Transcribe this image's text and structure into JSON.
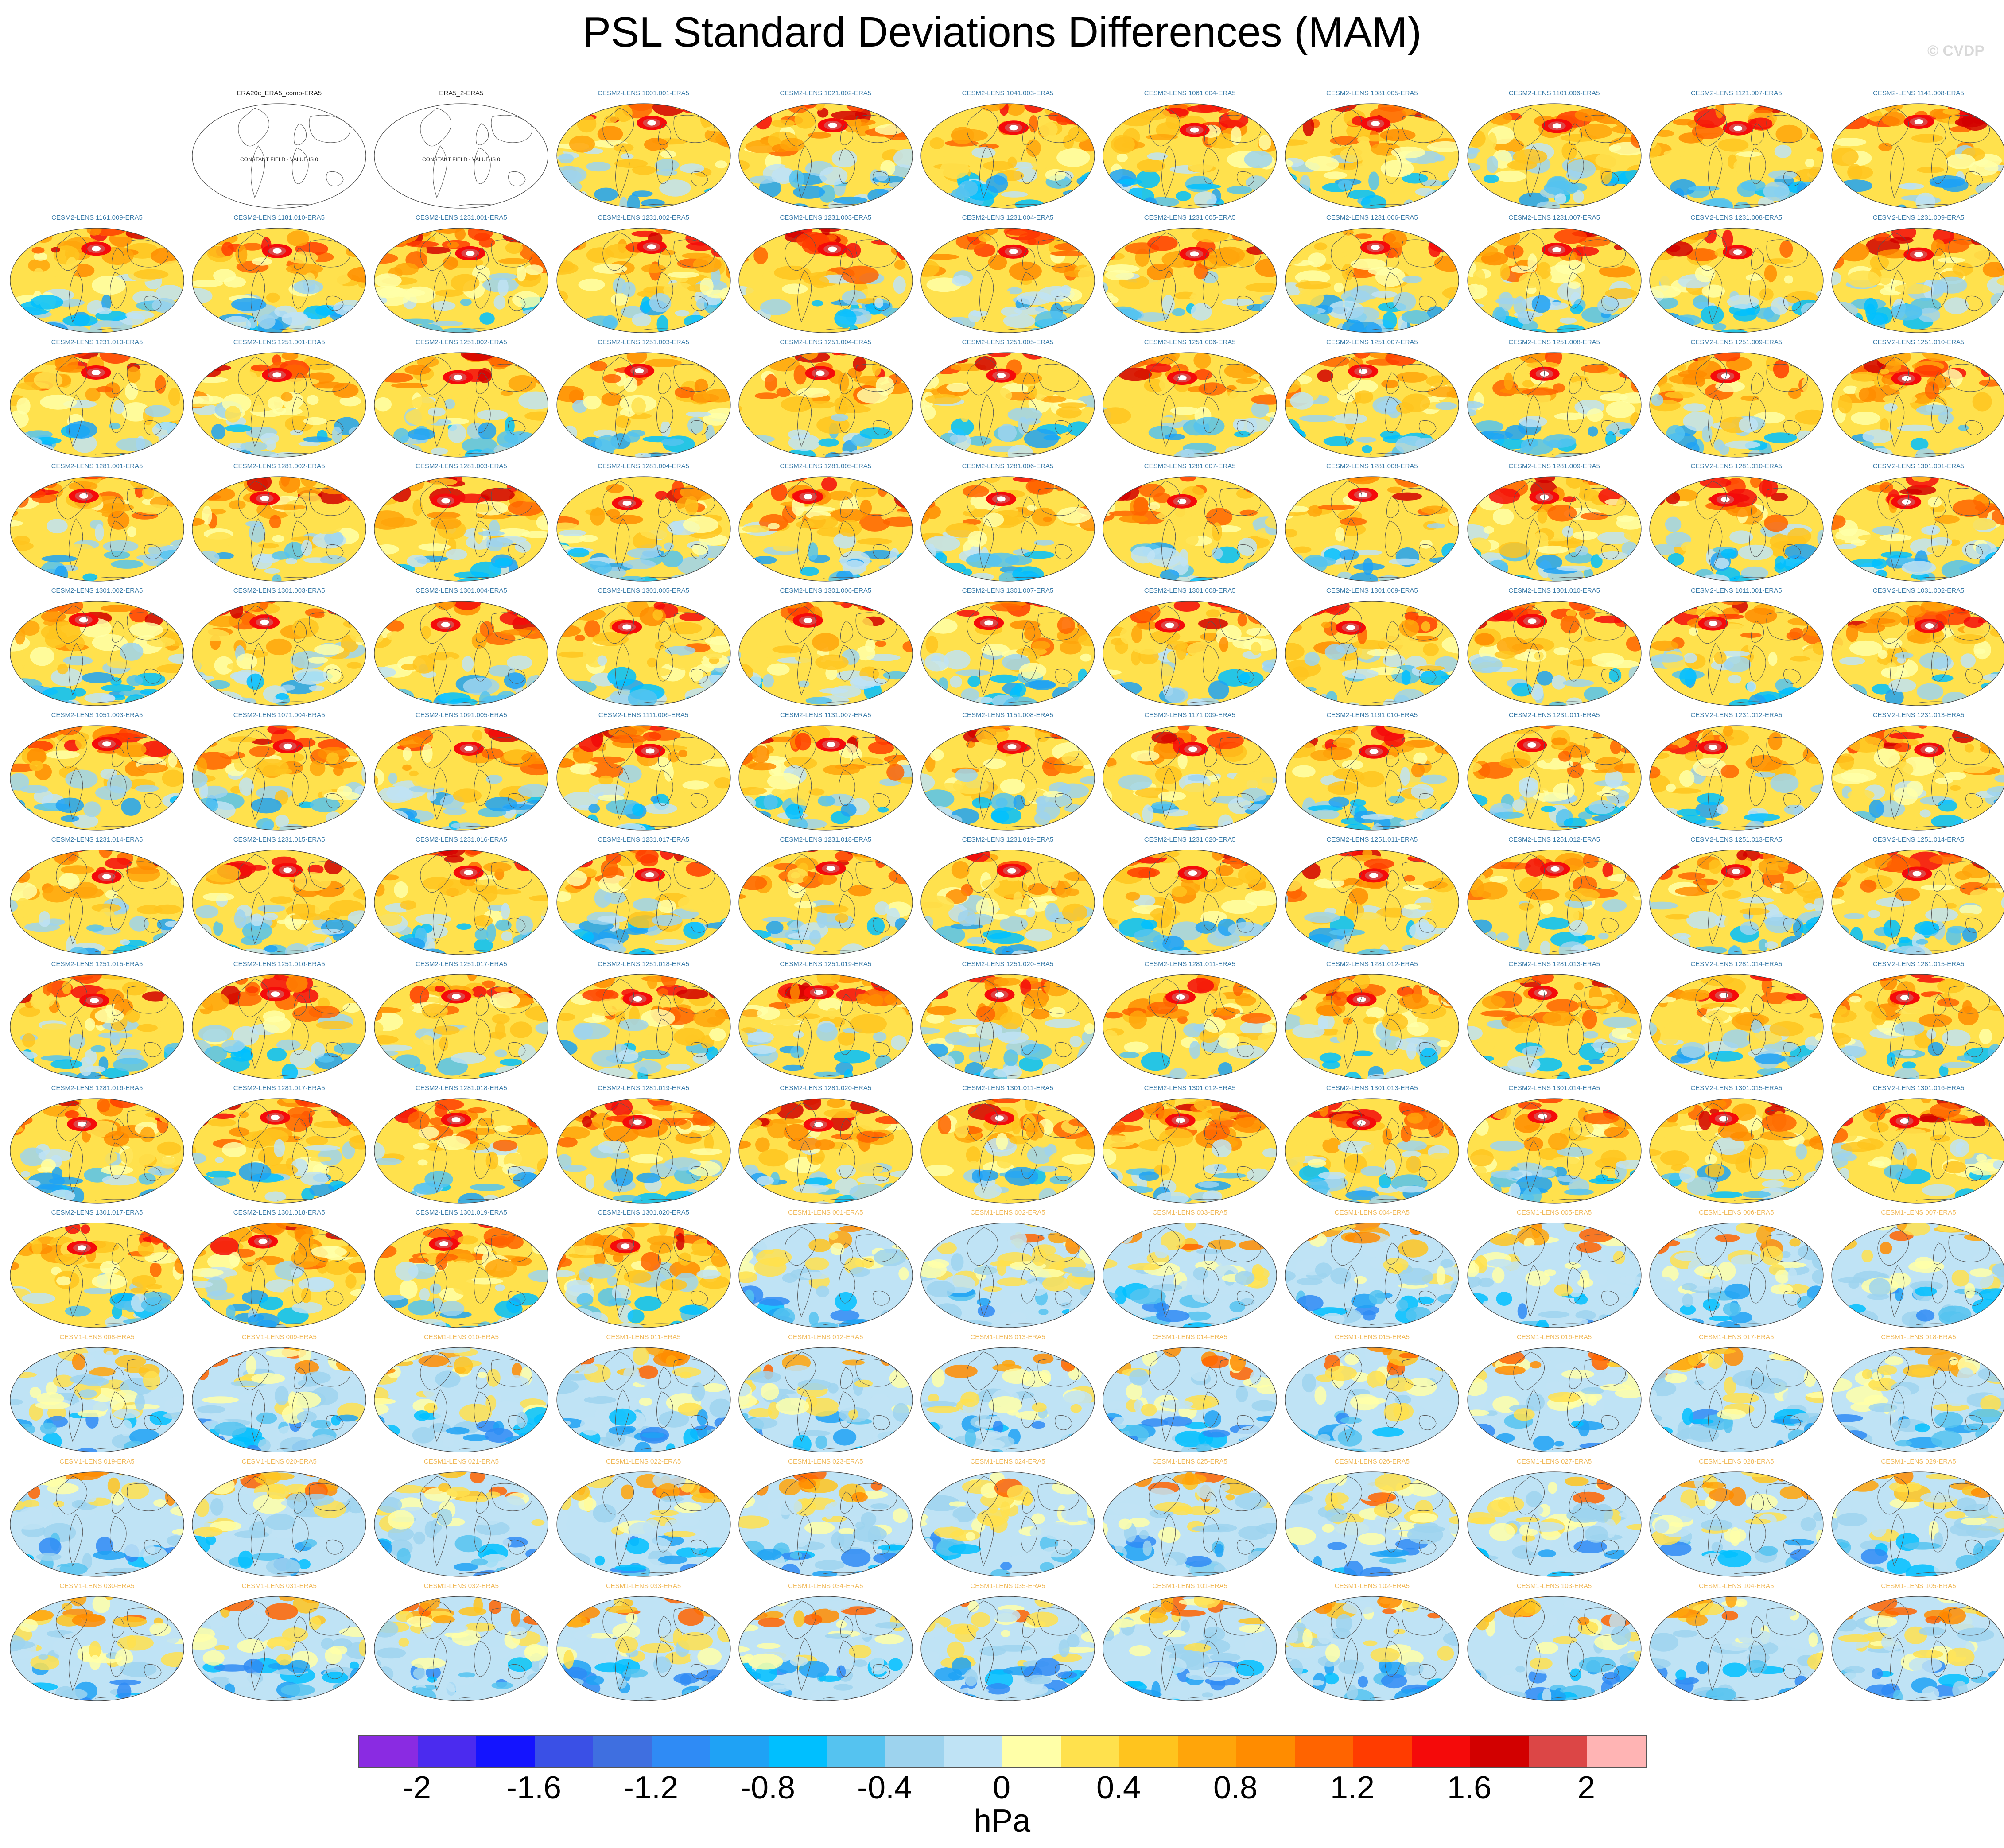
{
  "title": "PSL Standard Deviations Differences (MAM)",
  "credit": "© CVDP",
  "observation_note": "CONSTANT FIELD - VALUE IS 0",
  "chart_data": {
    "type": "heatmap",
    "title": "PSL Standard Deviations Differences (MAM)",
    "variable": "PSL",
    "season": "MAM",
    "projection": "global map (Robinson-like)",
    "units": "hPa",
    "colorbar": {
      "ticks": [
        "-2",
        "-1.6",
        "-1.2",
        "-0.8",
        "-0.4",
        "0",
        "0.4",
        "0.8",
        "1.2",
        "1.6",
        "2"
      ],
      "tick_values": [
        -2,
        -1.6,
        -1.2,
        -0.8,
        -0.4,
        0,
        0.4,
        0.8,
        1.2,
        1.6,
        2
      ],
      "colors": [
        "#8a2be2",
        "#4b2bef",
        "#1414ff",
        "#3a50e6",
        "#3f6fe0",
        "#2f8bf5",
        "#1fa2f5",
        "#00bfff",
        "#55c3f0",
        "#9dd3ee",
        "#bfe3f5",
        "#ffffa8",
        "#ffe14d",
        "#ffc41e",
        "#ffa50a",
        "#ff8c00",
        "#ff6400",
        "#ff3c00",
        "#f50a0a",
        "#d20000",
        "#dc4646",
        "#ffb4b4"
      ]
    },
    "panels": [
      {
        "label": "",
        "kind": "blank"
      },
      {
        "label": "ERA20c_ERA5_comb-ERA5",
        "kind": "obs"
      },
      {
        "label": "ERA5_2-ERA5",
        "kind": "obs"
      },
      {
        "label": "CESM2-LENS 1001.001-ERA5",
        "kind": "cesm2"
      },
      {
        "label": "CESM2-LENS 1021.002-ERA5",
        "kind": "cesm2"
      },
      {
        "label": "CESM2-LENS 1041.003-ERA5",
        "kind": "cesm2"
      },
      {
        "label": "CESM2-LENS 1061.004-ERA5",
        "kind": "cesm2"
      },
      {
        "label": "CESM2-LENS 1081.005-ERA5",
        "kind": "cesm2"
      },
      {
        "label": "CESM2-LENS 1101.006-ERA5",
        "kind": "cesm2"
      },
      {
        "label": "CESM2-LENS 1121.007-ERA5",
        "kind": "cesm2"
      },
      {
        "label": "CESM2-LENS 1141.008-ERA5",
        "kind": "cesm2"
      },
      {
        "label": "CESM2-LENS 1161.009-ERA5",
        "kind": "cesm2"
      },
      {
        "label": "CESM2-LENS 1181.010-ERA5",
        "kind": "cesm2"
      },
      {
        "label": "CESM2-LENS 1231.001-ERA5",
        "kind": "cesm2"
      },
      {
        "label": "CESM2-LENS 1231.002-ERA5",
        "kind": "cesm2"
      },
      {
        "label": "CESM2-LENS 1231.003-ERA5",
        "kind": "cesm2"
      },
      {
        "label": "CESM2-LENS 1231.004-ERA5",
        "kind": "cesm2"
      },
      {
        "label": "CESM2-LENS 1231.005-ERA5",
        "kind": "cesm2"
      },
      {
        "label": "CESM2-LENS 1231.006-ERA5",
        "kind": "cesm2"
      },
      {
        "label": "CESM2-LENS 1231.007-ERA5",
        "kind": "cesm2"
      },
      {
        "label": "CESM2-LENS 1231.008-ERA5",
        "kind": "cesm2"
      },
      {
        "label": "CESM2-LENS 1231.009-ERA5",
        "kind": "cesm2"
      },
      {
        "label": "CESM2-LENS 1231.010-ERA5",
        "kind": "cesm2"
      },
      {
        "label": "CESM2-LENS 1251.001-ERA5",
        "kind": "cesm2"
      },
      {
        "label": "CESM2-LENS 1251.002-ERA5",
        "kind": "cesm2"
      },
      {
        "label": "CESM2-LENS 1251.003-ERA5",
        "kind": "cesm2"
      },
      {
        "label": "CESM2-LENS 1251.004-ERA5",
        "kind": "cesm2"
      },
      {
        "label": "CESM2-LENS 1251.005-ERA5",
        "kind": "cesm2"
      },
      {
        "label": "CESM2-LENS 1251.006-ERA5",
        "kind": "cesm2"
      },
      {
        "label": "CESM2-LENS 1251.007-ERA5",
        "kind": "cesm2"
      },
      {
        "label": "CESM2-LENS 1251.008-ERA5",
        "kind": "cesm2"
      },
      {
        "label": "CESM2-LENS 1251.009-ERA5",
        "kind": "cesm2"
      },
      {
        "label": "CESM2-LENS 1251.010-ERA5",
        "kind": "cesm2"
      },
      {
        "label": "CESM2-LENS 1281.001-ERA5",
        "kind": "cesm2"
      },
      {
        "label": "CESM2-LENS 1281.002-ERA5",
        "kind": "cesm2"
      },
      {
        "label": "CESM2-LENS 1281.003-ERA5",
        "kind": "cesm2"
      },
      {
        "label": "CESM2-LENS 1281.004-ERA5",
        "kind": "cesm2"
      },
      {
        "label": "CESM2-LENS 1281.005-ERA5",
        "kind": "cesm2"
      },
      {
        "label": "CESM2-LENS 1281.006-ERA5",
        "kind": "cesm2"
      },
      {
        "label": "CESM2-LENS 1281.007-ERA5",
        "kind": "cesm2"
      },
      {
        "label": "CESM2-LENS 1281.008-ERA5",
        "kind": "cesm2"
      },
      {
        "label": "CESM2-LENS 1281.009-ERA5",
        "kind": "cesm2"
      },
      {
        "label": "CESM2-LENS 1281.010-ERA5",
        "kind": "cesm2"
      },
      {
        "label": "CESM2-LENS 1301.001-ERA5",
        "kind": "cesm2"
      },
      {
        "label": "CESM2-LENS 1301.002-ERA5",
        "kind": "cesm2"
      },
      {
        "label": "CESM2-LENS 1301.003-ERA5",
        "kind": "cesm2"
      },
      {
        "label": "CESM2-LENS 1301.004-ERA5",
        "kind": "cesm2"
      },
      {
        "label": "CESM2-LENS 1301.005-ERA5",
        "kind": "cesm2"
      },
      {
        "label": "CESM2-LENS 1301.006-ERA5",
        "kind": "cesm2"
      },
      {
        "label": "CESM2-LENS 1301.007-ERA5",
        "kind": "cesm2"
      },
      {
        "label": "CESM2-LENS 1301.008-ERA5",
        "kind": "cesm2"
      },
      {
        "label": "CESM2-LENS 1301.009-ERA5",
        "kind": "cesm2"
      },
      {
        "label": "CESM2-LENS 1301.010-ERA5",
        "kind": "cesm2"
      },
      {
        "label": "CESM2-LENS 1011.001-ERA5",
        "kind": "cesm2"
      },
      {
        "label": "CESM2-LENS 1031.002-ERA5",
        "kind": "cesm2"
      },
      {
        "label": "CESM2-LENS 1051.003-ERA5",
        "kind": "cesm2"
      },
      {
        "label": "CESM2-LENS 1071.004-ERA5",
        "kind": "cesm2"
      },
      {
        "label": "CESM2-LENS 1091.005-ERA5",
        "kind": "cesm2"
      },
      {
        "label": "CESM2-LENS 1111.006-ERA5",
        "kind": "cesm2"
      },
      {
        "label": "CESM2-LENS 1131.007-ERA5",
        "kind": "cesm2"
      },
      {
        "label": "CESM2-LENS 1151.008-ERA5",
        "kind": "cesm2"
      },
      {
        "label": "CESM2-LENS 1171.009-ERA5",
        "kind": "cesm2"
      },
      {
        "label": "CESM2-LENS 1191.010-ERA5",
        "kind": "cesm2"
      },
      {
        "label": "CESM2-LENS 1231.011-ERA5",
        "kind": "cesm2"
      },
      {
        "label": "CESM2-LENS 1231.012-ERA5",
        "kind": "cesm2"
      },
      {
        "label": "CESM2-LENS 1231.013-ERA5",
        "kind": "cesm2"
      },
      {
        "label": "CESM2-LENS 1231.014-ERA5",
        "kind": "cesm2"
      },
      {
        "label": "CESM2-LENS 1231.015-ERA5",
        "kind": "cesm2"
      },
      {
        "label": "CESM2-LENS 1231.016-ERA5",
        "kind": "cesm2"
      },
      {
        "label": "CESM2-LENS 1231.017-ERA5",
        "kind": "cesm2"
      },
      {
        "label": "CESM2-LENS 1231.018-ERA5",
        "kind": "cesm2"
      },
      {
        "label": "CESM2-LENS 1231.019-ERA5",
        "kind": "cesm2"
      },
      {
        "label": "CESM2-LENS 1231.020-ERA5",
        "kind": "cesm2"
      },
      {
        "label": "CESM2-LENS 1251.011-ERA5",
        "kind": "cesm2"
      },
      {
        "label": "CESM2-LENS 1251.012-ERA5",
        "kind": "cesm2"
      },
      {
        "label": "CESM2-LENS 1251.013-ERA5",
        "kind": "cesm2"
      },
      {
        "label": "CESM2-LENS 1251.014-ERA5",
        "kind": "cesm2"
      },
      {
        "label": "CESM2-LENS 1251.015-ERA5",
        "kind": "cesm2"
      },
      {
        "label": "CESM2-LENS 1251.016-ERA5",
        "kind": "cesm2"
      },
      {
        "label": "CESM2-LENS 1251.017-ERA5",
        "kind": "cesm2"
      },
      {
        "label": "CESM2-LENS 1251.018-ERA5",
        "kind": "cesm2"
      },
      {
        "label": "CESM2-LENS 1251.019-ERA5",
        "kind": "cesm2"
      },
      {
        "label": "CESM2-LENS 1251.020-ERA5",
        "kind": "cesm2"
      },
      {
        "label": "CESM2-LENS 1281.011-ERA5",
        "kind": "cesm2"
      },
      {
        "label": "CESM2-LENS 1281.012-ERA5",
        "kind": "cesm2"
      },
      {
        "label": "CESM2-LENS 1281.013-ERA5",
        "kind": "cesm2"
      },
      {
        "label": "CESM2-LENS 1281.014-ERA5",
        "kind": "cesm2"
      },
      {
        "label": "CESM2-LENS 1281.015-ERA5",
        "kind": "cesm2"
      },
      {
        "label": "CESM2-LENS 1281.016-ERA5",
        "kind": "cesm2"
      },
      {
        "label": "CESM2-LENS 1281.017-ERA5",
        "kind": "cesm2"
      },
      {
        "label": "CESM2-LENS 1281.018-ERA5",
        "kind": "cesm2"
      },
      {
        "label": "CESM2-LENS 1281.019-ERA5",
        "kind": "cesm2"
      },
      {
        "label": "CESM2-LENS 1281.020-ERA5",
        "kind": "cesm2"
      },
      {
        "label": "CESM2-LENS 1301.011-ERA5",
        "kind": "cesm2"
      },
      {
        "label": "CESM2-LENS 1301.012-ERA5",
        "kind": "cesm2"
      },
      {
        "label": "CESM2-LENS 1301.013-ERA5",
        "kind": "cesm2"
      },
      {
        "label": "CESM2-LENS 1301.014-ERA5",
        "kind": "cesm2"
      },
      {
        "label": "CESM2-LENS 1301.015-ERA5",
        "kind": "cesm2"
      },
      {
        "label": "CESM2-LENS 1301.016-ERA5",
        "kind": "cesm2"
      },
      {
        "label": "CESM2-LENS 1301.017-ERA5",
        "kind": "cesm2"
      },
      {
        "label": "CESM2-LENS 1301.018-ERA5",
        "kind": "cesm2"
      },
      {
        "label": "CESM2-LENS 1301.019-ERA5",
        "kind": "cesm2"
      },
      {
        "label": "CESM2-LENS 1301.020-ERA5",
        "kind": "cesm2"
      },
      {
        "label": "CESM1-LENS 001-ERA5",
        "kind": "cesm1"
      },
      {
        "label": "CESM1-LENS 002-ERA5",
        "kind": "cesm1"
      },
      {
        "label": "CESM1-LENS 003-ERA5",
        "kind": "cesm1"
      },
      {
        "label": "CESM1-LENS 004-ERA5",
        "kind": "cesm1"
      },
      {
        "label": "CESM1-LENS 005-ERA5",
        "kind": "cesm1"
      },
      {
        "label": "CESM1-LENS 006-ERA5",
        "kind": "cesm1"
      },
      {
        "label": "CESM1-LENS 007-ERA5",
        "kind": "cesm1"
      },
      {
        "label": "CESM1-LENS 008-ERA5",
        "kind": "cesm1"
      },
      {
        "label": "CESM1-LENS 009-ERA5",
        "kind": "cesm1"
      },
      {
        "label": "CESM1-LENS 010-ERA5",
        "kind": "cesm1"
      },
      {
        "label": "CESM1-LENS 011-ERA5",
        "kind": "cesm1"
      },
      {
        "label": "CESM1-LENS 012-ERA5",
        "kind": "cesm1"
      },
      {
        "label": "CESM1-LENS 013-ERA5",
        "kind": "cesm1"
      },
      {
        "label": "CESM1-LENS 014-ERA5",
        "kind": "cesm1"
      },
      {
        "label": "CESM1-LENS 015-ERA5",
        "kind": "cesm1"
      },
      {
        "label": "CESM1-LENS 016-ERA5",
        "kind": "cesm1"
      },
      {
        "label": "CESM1-LENS 017-ERA5",
        "kind": "cesm1"
      },
      {
        "label": "CESM1-LENS 018-ERA5",
        "kind": "cesm1"
      },
      {
        "label": "CESM1-LENS 019-ERA5",
        "kind": "cesm1"
      },
      {
        "label": "CESM1-LENS 020-ERA5",
        "kind": "cesm1"
      },
      {
        "label": "CESM1-LENS 021-ERA5",
        "kind": "cesm1"
      },
      {
        "label": "CESM1-LENS 022-ERA5",
        "kind": "cesm1"
      },
      {
        "label": "CESM1-LENS 023-ERA5",
        "kind": "cesm1"
      },
      {
        "label": "CESM1-LENS 024-ERA5",
        "kind": "cesm1"
      },
      {
        "label": "CESM1-LENS 025-ERA5",
        "kind": "cesm1"
      },
      {
        "label": "CESM1-LENS 026-ERA5",
        "kind": "cesm1"
      },
      {
        "label": "CESM1-LENS 027-ERA5",
        "kind": "cesm1"
      },
      {
        "label": "CESM1-LENS 028-ERA5",
        "kind": "cesm1"
      },
      {
        "label": "CESM1-LENS 029-ERA5",
        "kind": "cesm1"
      },
      {
        "label": "CESM1-LENS 030-ERA5",
        "kind": "cesm1"
      },
      {
        "label": "CESM1-LENS 031-ERA5",
        "kind": "cesm1"
      },
      {
        "label": "CESM1-LENS 032-ERA5",
        "kind": "cesm1"
      },
      {
        "label": "CESM1-LENS 033-ERA5",
        "kind": "cesm1"
      },
      {
        "label": "CESM1-LENS 034-ERA5",
        "kind": "cesm1"
      },
      {
        "label": "CESM1-LENS 035-ERA5",
        "kind": "cesm1"
      },
      {
        "label": "CESM1-LENS 101-ERA5",
        "kind": "cesm1"
      },
      {
        "label": "CESM1-LENS 102-ERA5",
        "kind": "cesm1"
      },
      {
        "label": "CESM1-LENS 103-ERA5",
        "kind": "cesm1"
      },
      {
        "label": "CESM1-LENS 104-ERA5",
        "kind": "cesm1"
      },
      {
        "label": "CESM1-LENS 105-ERA5",
        "kind": "cesm1"
      }
    ]
  }
}
